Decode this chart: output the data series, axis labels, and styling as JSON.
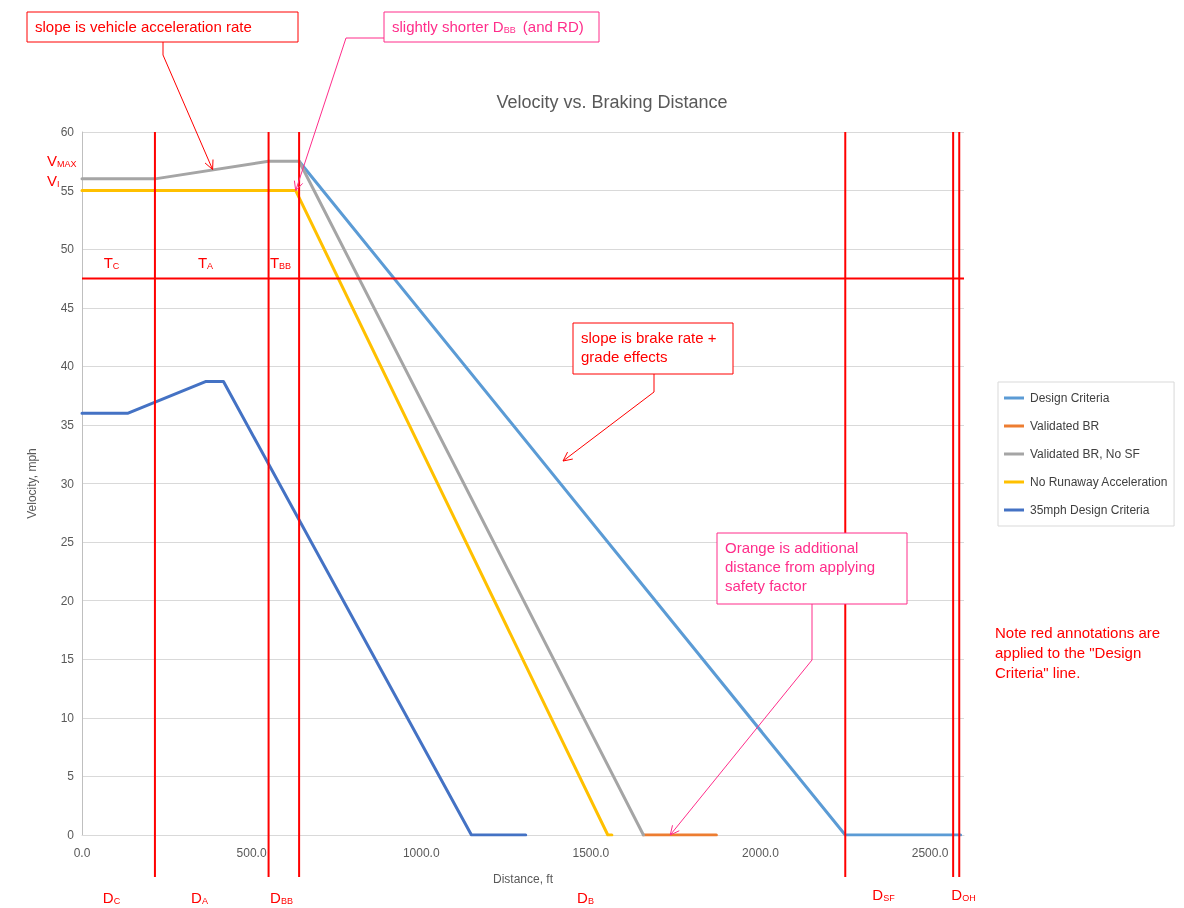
{
  "chart_data": {
    "type": "line",
    "title": "Velocity vs. Braking Distance",
    "xlabel": "Distance, ft",
    "ylabel": "Velocity, mph",
    "xlim": [
      0,
      2600
    ],
    "xticks": [
      {
        "value": 0,
        "label": "0.0"
      },
      {
        "value": 500,
        "label": "500.0"
      },
      {
        "value": 1000,
        "label": "1000.0"
      },
      {
        "value": 1500,
        "label": "1500.0"
      },
      {
        "value": 2000,
        "label": "2000.0"
      },
      {
        "value": 2500,
        "label": "2500.0"
      }
    ],
    "ylim": [
      0,
      60
    ],
    "yticks": [
      0,
      5,
      10,
      15,
      20,
      25,
      30,
      35,
      40,
      45,
      50,
      55,
      60
    ],
    "grid": "y",
    "legend": "right",
    "marker": "none",
    "line_style": "solid",
    "series": [
      {
        "name": "Design Criteria",
        "color": "#5b9bd5",
        "x": [
          640,
          2250,
          2590
        ],
        "values": [
          57.5,
          0,
          0
        ]
      },
      {
        "name": "Validated BR",
        "color": "#ed7d31",
        "x": [
          1655,
          1870
        ],
        "values": [
          0,
          0
        ]
      },
      {
        "name": "Validated BR, No SF",
        "color": "#a5a5a5",
        "x": [
          0,
          215,
          550,
          640,
          1655
        ],
        "values": [
          56,
          56,
          57.5,
          57.5,
          0
        ]
      },
      {
        "name": "No Runaway Acceleration",
        "color": "#ffc000",
        "x": [
          0,
          630,
          1550,
          1562
        ],
        "values": [
          55,
          55,
          0,
          0
        ]
      },
      {
        "name": "35mph Design Criteria",
        "color": "#4472c4",
        "x": [
          0,
          136,
          364,
          417,
          1148,
          1308
        ],
        "values": [
          36,
          36,
          38.7,
          38.7,
          0,
          0
        ]
      }
    ],
    "ref_lines": [
      {
        "axis": "x",
        "value": 215,
        "color": "#ff0000"
      },
      {
        "axis": "x",
        "value": 550,
        "color": "#ff0000"
      },
      {
        "axis": "x",
        "value": 640,
        "color": "#ff0000"
      },
      {
        "axis": "x",
        "value": 2250,
        "color": "#ff0000"
      },
      {
        "axis": "x",
        "value": 2568,
        "color": "#ff0000"
      },
      {
        "axis": "x",
        "value": 2586,
        "color": "#ff0000"
      },
      {
        "axis": "y",
        "value": 47.5,
        "color": "#ff0000"
      }
    ],
    "annotations": [
      {
        "text": "slope is vehicle acceleration rate",
        "x": 385,
        "y": 56.8
      },
      {
        "text": "slightly shorter D$_{BB}$ (and RD)",
        "x": 630,
        "y": 55
      },
      "slope is brake rate + grade effects",
      {
        "text": "Orange is additional distance from applying safety factor",
        "x": 1734,
        "y": 0
      },
      "T$_{C}$",
      "T$_{A}$",
      "T$_{BB}$",
      "V$_{MAX}$",
      "V$_{I}$",
      "D$_{C}$",
      "D$_{A}$",
      "D$_{BB}$",
      "D$_{B}$",
      "D$_{SF}$",
      "D$_{OH}$",
      "Note red annotations are applied to the \"Design Criteria\" line."
    ]
  }
}
